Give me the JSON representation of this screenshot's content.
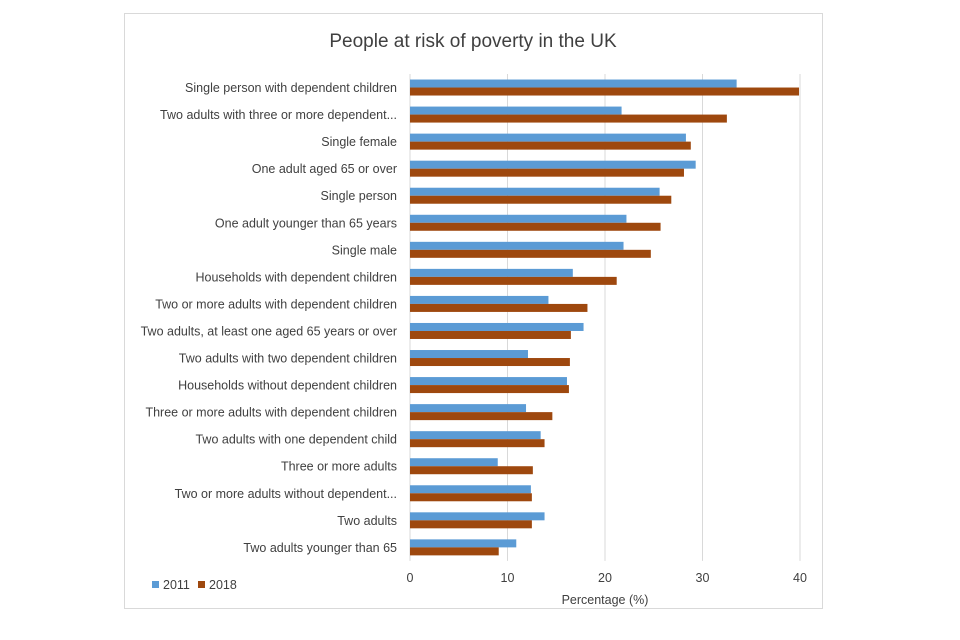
{
  "chart_data": {
    "type": "bar",
    "orientation": "horizontal",
    "title": "People at risk of poverty in the UK",
    "xlabel": "Percentage (%)",
    "ylabel": "",
    "xlim": [
      0,
      40
    ],
    "ticks": [
      0,
      10,
      20,
      30,
      40
    ],
    "grid": true,
    "legend_position": "bottom-left",
    "categories": [
      "Single person with dependent children",
      "Two adults with three or more dependent...",
      "Single female",
      "One adult aged 65 or over",
      "Single person",
      "One adult younger than 65 years",
      "Single male",
      "Households with dependent children",
      "Two or more adults with dependent children",
      "Two adults, at least one aged 65 years or over",
      "Two adults with two dependent children",
      "Households without dependent children",
      "Three or more adults with dependent children",
      "Two adults with one dependent child",
      "Three or more adults",
      "Two or more adults without dependent...",
      "Two adults",
      "Two adults younger than 65"
    ],
    "series": [
      {
        "name": "2011",
        "color": "#5b9bd5",
        "values": [
          33.5,
          21.7,
          28.3,
          29.3,
          25.6,
          22.2,
          21.9,
          16.7,
          14.2,
          17.8,
          12.1,
          16.1,
          11.9,
          13.4,
          9.0,
          12.4,
          13.8,
          10.9
        ]
      },
      {
        "name": "2018",
        "color": "#9e480e",
        "values": [
          39.9,
          32.5,
          28.8,
          28.1,
          26.8,
          25.7,
          24.7,
          21.2,
          18.2,
          16.5,
          16.4,
          16.3,
          14.6,
          13.8,
          12.6,
          12.5,
          12.5,
          9.1
        ]
      }
    ]
  }
}
